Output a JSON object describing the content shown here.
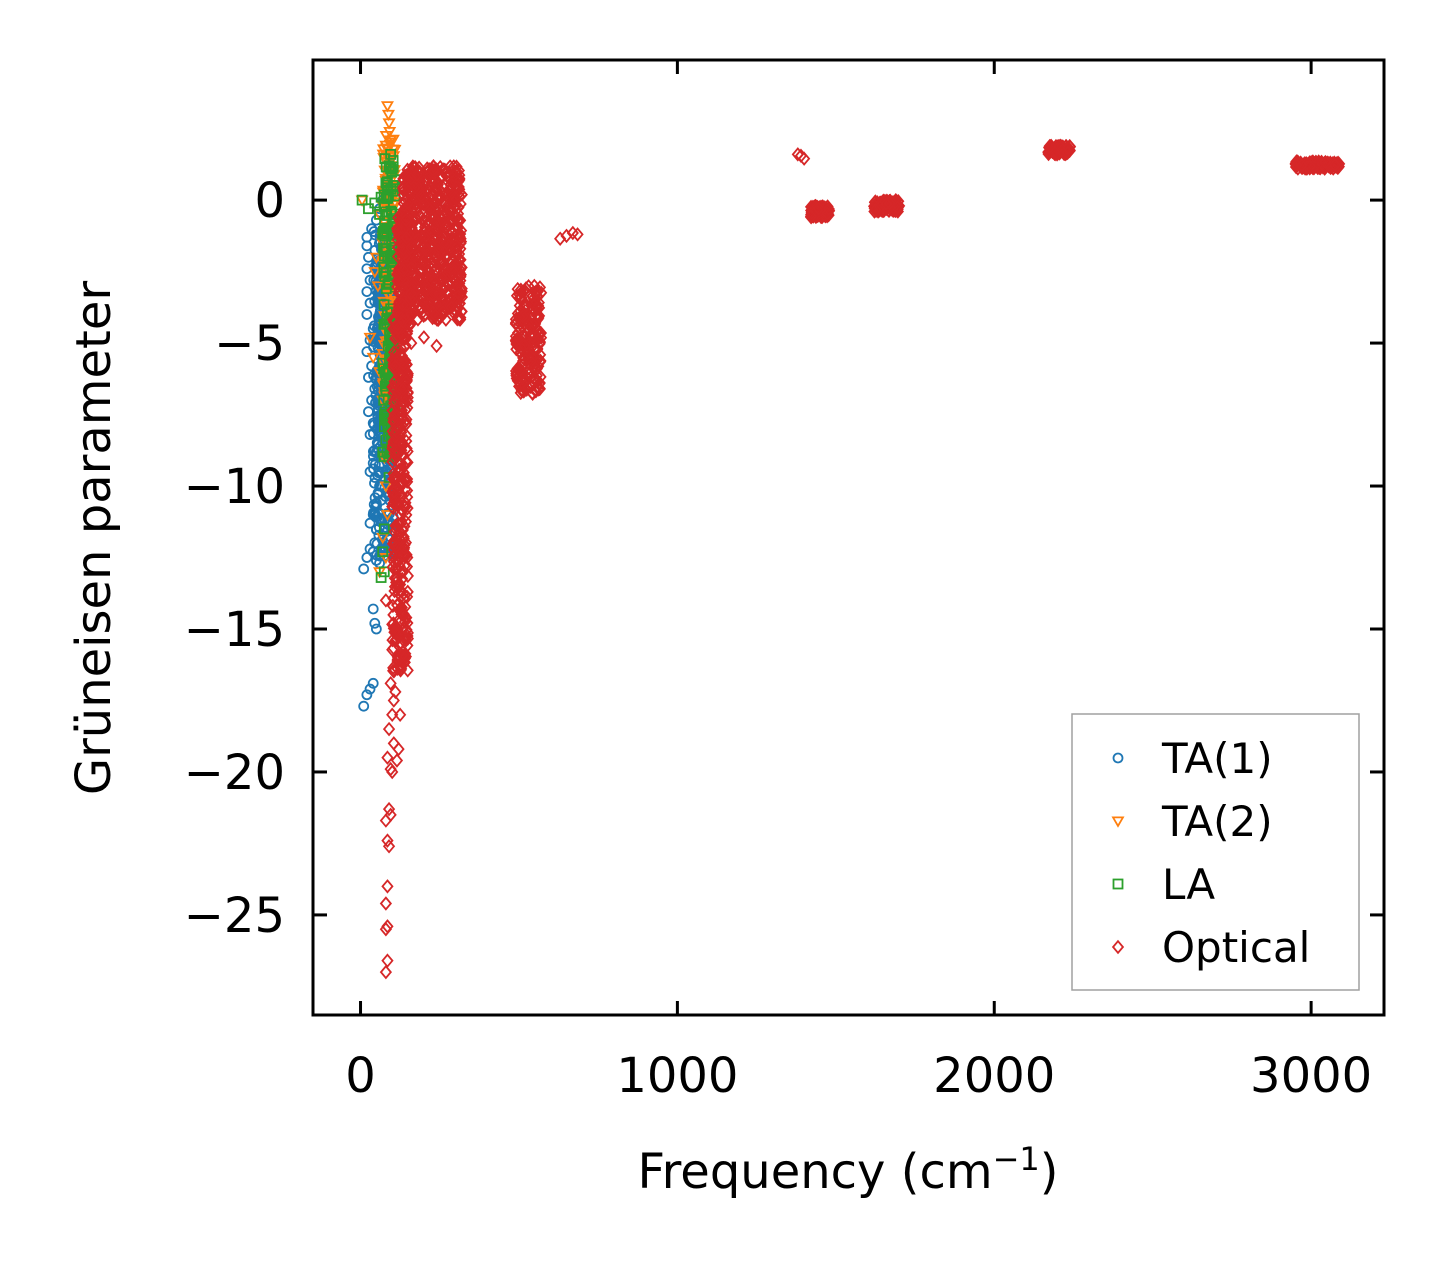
{
  "chart_data": {
    "type": "scatter",
    "title": "",
    "xlabel": "Frequency (cm",
    "xlabel_sup": "−1",
    "xlabel_close": ")",
    "ylabel": "Grüneisen parameter",
    "xlim": [
      -150,
      3230
    ],
    "ylim": [
      -28.5,
      4.9
    ],
    "xticks": [
      0,
      1000,
      2000,
      3000
    ],
    "xtick_labels": [
      "0",
      "1000",
      "2000",
      "3000"
    ],
    "yticks": [
      0,
      -5,
      -10,
      -15,
      -20,
      -25
    ],
    "ytick_labels": [
      "0",
      "−5",
      "−10",
      "−15",
      "−20",
      "−25"
    ],
    "grid": false,
    "legend_position": "lower-right",
    "colors": {
      "TA(1)": "#1f77b4",
      "TA(2)": "#ff7f0e",
      "LA": "#2ca02c",
      "Optical": "#d62728"
    },
    "series": [
      {
        "name": "TA(1)",
        "marker": "circle",
        "points": [
          [
            10,
            -17.7
          ],
          [
            20,
            -17.3
          ],
          [
            30,
            -17.1
          ],
          [
            40,
            -16.9
          ],
          [
            10,
            -12.9
          ],
          [
            20,
            -12.5
          ],
          [
            30,
            -12.2
          ],
          [
            40,
            -12.3
          ],
          [
            50,
            -12.6
          ],
          [
            60,
            -12.7
          ],
          [
            40,
            -14.3
          ],
          [
            45,
            -14.8
          ],
          [
            50,
            -15.0
          ],
          [
            30,
            -11.3
          ],
          [
            40,
            -11.0
          ],
          [
            50,
            -10.6
          ],
          [
            55,
            -10.3
          ],
          [
            60,
            -10.0
          ],
          [
            30,
            -9.5
          ],
          [
            40,
            -9.2
          ],
          [
            50,
            -8.8
          ],
          [
            55,
            -8.5
          ],
          [
            30,
            -8.2
          ],
          [
            40,
            -7.8
          ],
          [
            25,
            -7.4
          ],
          [
            35,
            -7.0
          ],
          [
            45,
            -6.6
          ],
          [
            25,
            -6.2
          ],
          [
            35,
            -5.8
          ],
          [
            20,
            -5.3
          ],
          [
            30,
            -4.9
          ],
          [
            40,
            -4.5
          ],
          [
            20,
            -4.0
          ],
          [
            30,
            -3.6
          ],
          [
            20,
            -3.2
          ],
          [
            30,
            -2.8
          ],
          [
            20,
            -2.4
          ],
          [
            25,
            -2.0
          ],
          [
            20,
            -1.6
          ],
          [
            20,
            -1.3
          ],
          [
            35,
            -1.0
          ],
          [
            50,
            -0.7
          ],
          [
            60,
            -0.3
          ],
          [
            70,
            0.0
          ],
          [
            80,
            0.4
          ],
          [
            85,
            0.8
          ],
          [
            90,
            0.9
          ],
          [
            75,
            -1.5
          ],
          [
            80,
            -2.5
          ],
          [
            85,
            -3.5
          ],
          [
            70,
            -4.5
          ],
          [
            65,
            -5.5
          ],
          [
            75,
            -6.5
          ],
          [
            80,
            -7.5
          ],
          [
            70,
            -8.5
          ],
          [
            60,
            -9.5
          ],
          [
            65,
            -10.5
          ],
          [
            85,
            -9.0
          ],
          [
            90,
            -8.0
          ],
          [
            95,
            -6.0
          ]
        ],
        "dense": [
          {
            "x": [
              40,
              105
            ],
            "y": [
              -12.5,
              -1.0
            ],
            "count": 300
          },
          {
            "x": [
              55,
              100
            ],
            "y": [
              -8.0,
              -2.0
            ],
            "count": 220
          }
        ]
      },
      {
        "name": "TA(2)",
        "marker": "triangle_down",
        "points": [
          [
            85,
            3.3
          ],
          [
            88,
            3.0
          ],
          [
            90,
            2.7
          ],
          [
            92,
            2.4
          ],
          [
            95,
            2.1
          ],
          [
            88,
            1.8
          ],
          [
            92,
            1.5
          ],
          [
            95,
            1.2
          ],
          [
            90,
            0.9
          ],
          [
            85,
            0.5
          ],
          [
            5,
            0.0
          ],
          [
            60,
            -0.5
          ],
          [
            70,
            -1.5
          ],
          [
            50,
            -2.0
          ],
          [
            45,
            -2.5
          ],
          [
            55,
            -3.0
          ],
          [
            30,
            -4.8
          ],
          [
            40,
            -5.5
          ],
          [
            60,
            -6.0
          ],
          [
            70,
            -7.0
          ],
          [
            75,
            -9.0
          ],
          [
            80,
            -10.0
          ],
          [
            85,
            -11.0
          ],
          [
            70,
            -11.8
          ],
          [
            80,
            -12.5
          ],
          [
            60,
            -13.0
          ]
        ],
        "dense": [
          {
            "x": [
              70,
              110
            ],
            "y": [
              -7.0,
              2.3
            ],
            "count": 140
          }
        ]
      },
      {
        "name": "LA",
        "marker": "square",
        "points": [
          [
            5,
            0.0
          ],
          [
            25,
            -0.3
          ],
          [
            45,
            -0.1
          ],
          [
            65,
            0.1
          ],
          [
            80,
            0.6
          ],
          [
            90,
            1.2
          ],
          [
            95,
            1.6
          ],
          [
            60,
            -0.5
          ],
          [
            70,
            -1.2
          ],
          [
            80,
            -1.8
          ],
          [
            90,
            -2.8
          ],
          [
            95,
            -3.8
          ],
          [
            100,
            -4.8
          ],
          [
            90,
            -6.0
          ],
          [
            95,
            -7.2
          ],
          [
            100,
            -8.0
          ],
          [
            100,
            -8.8
          ],
          [
            90,
            -9.7
          ],
          [
            75,
            -11.5
          ],
          [
            70,
            -12.3
          ],
          [
            65,
            -13.2
          ],
          [
            75,
            -13.0
          ]
        ],
        "dense": [
          {
            "x": [
              70,
              110
            ],
            "y": [
              -9.0,
              1.5
            ],
            "count": 160
          }
        ]
      },
      {
        "name": "Optical",
        "marker": "diamond",
        "points": [
          [
            80,
            -14.0
          ],
          [
            95,
            -16.9
          ],
          [
            105,
            -17.5
          ],
          [
            100,
            -18.0
          ],
          [
            90,
            -18.5
          ],
          [
            105,
            -19.0
          ],
          [
            85,
            -19.5
          ],
          [
            115,
            -19.6
          ],
          [
            95,
            -19.9
          ],
          [
            100,
            -20.0
          ],
          [
            90,
            -21.3
          ],
          [
            95,
            -21.5
          ],
          [
            80,
            -21.7
          ],
          [
            85,
            -22.4
          ],
          [
            90,
            -22.6
          ],
          [
            85,
            -24.0
          ],
          [
            80,
            -24.6
          ],
          [
            85,
            -25.4
          ],
          [
            80,
            -25.5
          ],
          [
            85,
            -26.6
          ],
          [
            80,
            -27.0
          ],
          [
            125,
            -18.0
          ],
          [
            120,
            -19.2
          ],
          [
            110,
            -17.2
          ],
          [
            240,
            -5.1
          ],
          [
            160,
            -5.0
          ],
          [
            200,
            -4.8
          ],
          [
            630,
            -1.35
          ],
          [
            650,
            -1.25
          ],
          [
            670,
            -1.15
          ],
          [
            685,
            -1.2
          ],
          [
            1390,
            1.55
          ],
          [
            1380,
            1.6
          ],
          [
            1400,
            1.45
          ]
        ],
        "dense": [
          {
            "x": [
              100,
              150
            ],
            "y": [
              -16.5,
              -4.0
            ],
            "count": 380
          },
          {
            "x": [
              130,
              320
            ],
            "y": [
              -4.2,
              1.2
            ],
            "count": 650
          },
          {
            "x": [
              115,
              160
            ],
            "y": [
              -4.5,
              -0.5
            ],
            "count": 120
          },
          {
            "x": [
              490,
              570
            ],
            "y": [
              -6.8,
              -3.0
            ],
            "count": 200
          },
          {
            "x": [
              1420,
              1480
            ],
            "y": [
              -0.6,
              -0.2
            ],
            "count": 90
          },
          {
            "x": [
              1620,
              1700
            ],
            "y": [
              -0.4,
              0.0
            ],
            "count": 90
          },
          {
            "x": [
              2170,
              2240
            ],
            "y": [
              1.6,
              1.9
            ],
            "count": 90
          },
          {
            "x": [
              2950,
              3090
            ],
            "y": [
              1.1,
              1.35
            ],
            "count": 120
          }
        ]
      }
    ]
  }
}
